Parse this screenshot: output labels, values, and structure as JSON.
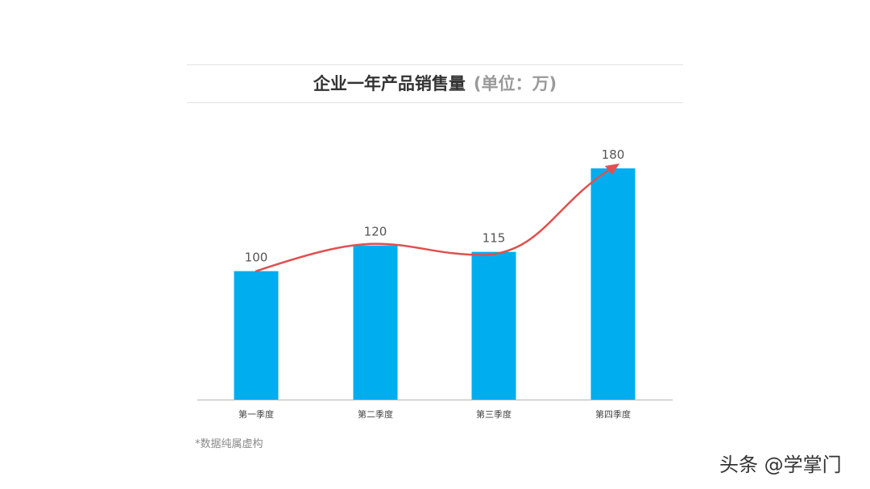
{
  "chart_data": {
    "type": "bar",
    "title": "企业一年产品销售量",
    "title_unit": "(单位：万)",
    "categories": [
      "第一季度",
      "第二季度",
      "第三季度",
      "第四季度"
    ],
    "values": [
      100,
      120,
      115,
      180
    ],
    "data_labels": [
      "100",
      "120",
      "115",
      "180"
    ],
    "ylim": [
      0,
      180
    ],
    "grid": false,
    "bar_color": "#00adef",
    "trend_line": {
      "type": "smooth-arrow",
      "color": "#e05050"
    }
  },
  "footnote": "*数据纯属虚构",
  "watermark": "头条 @学掌门"
}
